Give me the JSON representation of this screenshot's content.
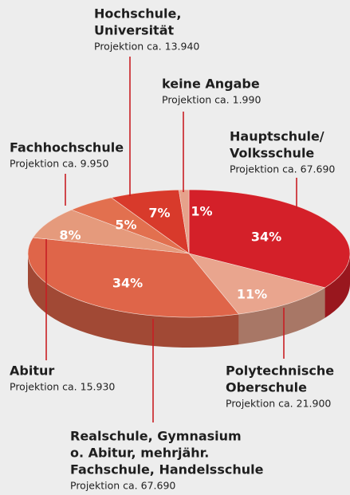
{
  "chart_data": {
    "type": "pie",
    "categories": [
      [
        "Hauptschule/",
        "Volksschule"
      ],
      [
        "Polytechnische",
        "Oberschule"
      ],
      [
        "Realschule, Gymnasium",
        "o. Abitur, mehrjähr.",
        "Fachschule, Handelsschule"
      ],
      [
        "Abitur"
      ],
      [
        "Fachhochschule"
      ],
      [
        "Hochschule,",
        "Universität"
      ],
      [
        "keine Angabe"
      ]
    ],
    "notes": [
      "Projektion ca. 67.690",
      "Projektion ca. 21.900",
      "Projektion ca. 67.690",
      "Projektion ca. 15.930",
      "Projektion ca. 9.950",
      "Projektion ca. 13.940",
      "Projektion ca. 1.990"
    ],
    "values": [
      34,
      11,
      34,
      8,
      5,
      7,
      1
    ],
    "value_labels": [
      "34%",
      "11%",
      "34%",
      "8%",
      "5%",
      "7%",
      "1%"
    ],
    "colors": [
      "#d42029",
      "#e9a58e",
      "#df6549",
      "#e59a7c",
      "#e2704f",
      "#d83a2b",
      "#e6a28b"
    ]
  }
}
